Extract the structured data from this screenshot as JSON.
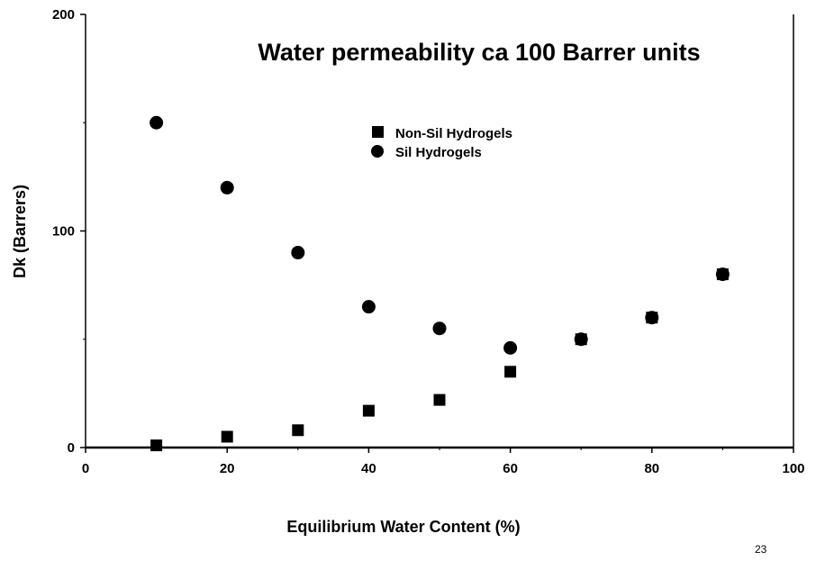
{
  "chart_data": {
    "type": "scatter",
    "title": "Water permeability ca 100 Barrer units",
    "xlabel": "Equilibrium Water Content (%)",
    "ylabel": "Dk (Barrers)",
    "xlim": [
      0,
      100
    ],
    "ylim": [
      0,
      200
    ],
    "xticks": [
      "0",
      "20",
      "40",
      "60",
      "80",
      "100"
    ],
    "yticks": [
      "0",
      "100",
      "200"
    ],
    "grid": false,
    "legend_position": "top-center",
    "series": [
      {
        "name": "Non-Sil Hydrogels",
        "marker": "square",
        "color": "#000000",
        "x": [
          10,
          20,
          30,
          40,
          50,
          60,
          70,
          80,
          90
        ],
        "y": [
          1,
          5,
          8,
          17,
          22,
          35,
          50,
          60,
          80
        ]
      },
      {
        "name": "Sil Hydrogels",
        "marker": "circle",
        "color": "#000000",
        "x": [
          10,
          20,
          30,
          40,
          50,
          60,
          70,
          80,
          90
        ],
        "y": [
          150,
          120,
          90,
          65,
          55,
          46,
          50,
          60,
          80
        ]
      }
    ]
  },
  "page_number": "23"
}
